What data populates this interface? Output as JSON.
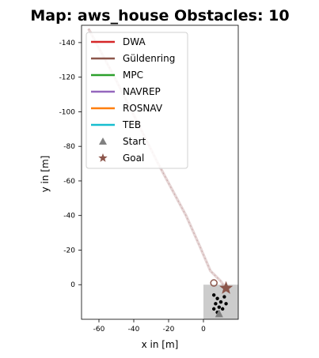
{
  "chart_data": {
    "type": "line",
    "title": "Map: aws_house Obstacles: 10",
    "xlabel": "x in [m]",
    "ylabel": "y in [m]",
    "xlim": [
      -70,
      20
    ],
    "ylim": [
      20,
      -150
    ],
    "y_inverted": true,
    "xticks": [
      -60,
      -40,
      -20,
      0
    ],
    "yticks": [
      -140,
      -120,
      -100,
      -80,
      -60,
      -40,
      -20,
      0
    ],
    "legend": {
      "placement": "top-left",
      "entries": [
        {
          "label": "DWA",
          "color": "#d62728",
          "kind": "line"
        },
        {
          "label": "Güldenring",
          "color": "#8c564b",
          "kind": "line"
        },
        {
          "label": "MPC",
          "color": "#2ca02c",
          "kind": "line"
        },
        {
          "label": "NAVREP",
          "color": "#9467bd",
          "kind": "line"
        },
        {
          "label": "ROSNAV",
          "color": "#ff7f0e",
          "kind": "line"
        },
        {
          "label": "TEB",
          "color": "#17becf",
          "kind": "line"
        },
        {
          "label": "Start",
          "color": "#808080",
          "kind": "triangle"
        },
        {
          "label": "Goal",
          "color": "#8c564b",
          "kind": "star"
        }
      ]
    },
    "map_region": {
      "x": [
        0,
        20
      ],
      "y": [
        0,
        20
      ],
      "color": "#cccccc"
    },
    "trajectory": {
      "name": "Güldenring",
      "color": "#c8a4a4",
      "x": [
        -66,
        -58,
        -50,
        -42,
        -34,
        -26,
        -18,
        -10,
        -2,
        4,
        10,
        14
      ],
      "y": [
        -148,
        -133,
        -118,
        -102,
        -86,
        -70,
        -55,
        -40,
        -22,
        -8,
        -2,
        4
      ]
    },
    "start": {
      "x": 9,
      "y": 17
    },
    "goal": {
      "x": 13,
      "y": 2
    },
    "collision_marker": {
      "x": 6,
      "y": -1
    },
    "obstacles": [
      {
        "x": 6,
        "y": 6
      },
      {
        "x": 8,
        "y": 8
      },
      {
        "x": 10,
        "y": 10
      },
      {
        "x": 7,
        "y": 11
      },
      {
        "x": 12,
        "y": 7
      },
      {
        "x": 9,
        "y": 13
      },
      {
        "x": 11,
        "y": 14
      },
      {
        "x": 6,
        "y": 14
      },
      {
        "x": 13,
        "y": 11
      },
      {
        "x": 8,
        "y": 16
      }
    ]
  }
}
